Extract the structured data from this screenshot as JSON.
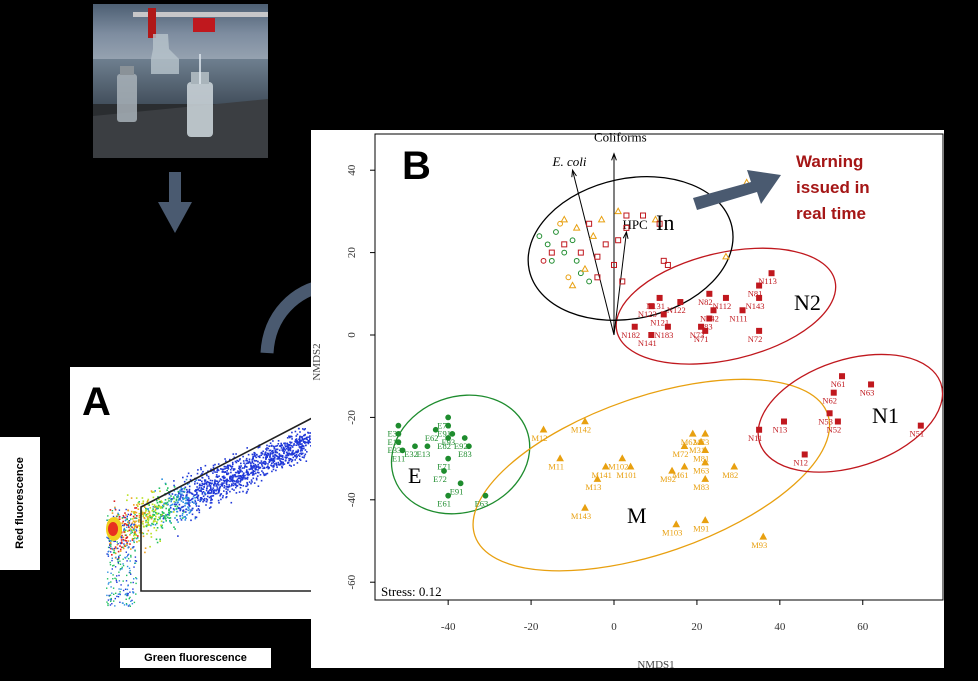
{
  "panels": {
    "a_letter": "A",
    "b_letter": "B"
  },
  "panel_a": {
    "y_label": "Red fluorescence",
    "x_label": "Green fluorescence"
  },
  "panel_b": {
    "y_axis_label": "NMDS2",
    "x_axis_label": "NMDS1",
    "stress": "Stress: 0.12",
    "warning_lines": [
      "Warning",
      "issued in",
      "real time"
    ],
    "vectors": {
      "ecoli": "E. coli",
      "coliforms": "Coliforms",
      "hpc": "HPC"
    },
    "cluster_labels": {
      "in": "In",
      "n2": "N2",
      "n1": "N1",
      "e": "E",
      "m": "M"
    }
  },
  "colors": {
    "E": "#1e8c2e",
    "M": "#e8a010",
    "N": "#c0181e",
    "In": "#000000",
    "warning": "#a51616",
    "arrow": "#4a5a70"
  },
  "chart_data": {
    "type": "scatter",
    "xlabel": "NMDS1",
    "ylabel": "NMDS2",
    "xlim": [
      -57,
      79
    ],
    "ylim": [
      -62,
      44
    ],
    "xticks": [
      -40,
      -20,
      0,
      20,
      40,
      60
    ],
    "yticks": [
      40,
      20,
      0,
      -20,
      -40,
      -60
    ],
    "annotation": "Stress: 0.12",
    "clusters": [
      {
        "label": "E",
        "ellipse": {
          "cx": -37,
          "cy": -29,
          "rx": 17,
          "ry": 14,
          "angle": -20
        }
      },
      {
        "label": "M",
        "ellipse": {
          "cx": 9,
          "cy": -34,
          "rx": 45,
          "ry": 19,
          "angle": -19
        }
      },
      {
        "label": "N1",
        "ellipse": {
          "cx": 57,
          "cy": -19,
          "rx": 23,
          "ry": 13,
          "angle": -18
        }
      },
      {
        "label": "N2",
        "ellipse": {
          "cx": 27,
          "cy": 7,
          "rx": 27,
          "ry": 13,
          "angle": -13
        }
      },
      {
        "label": "In",
        "ellipse": {
          "cx": 4,
          "cy": 21,
          "rx": 25,
          "ry": 17,
          "angle": -12
        }
      }
    ],
    "series": [
      {
        "name": "E",
        "marker": "circle",
        "points": [
          {
            "label": "E31",
            "x": -52,
            "y": -22
          },
          {
            "label": "E12",
            "x": -52,
            "y": -24
          },
          {
            "label": "E33",
            "x": -52,
            "y": -26
          },
          {
            "label": "E32",
            "x": -48,
            "y": -27
          },
          {
            "label": "E11",
            "x": -51,
            "y": -28
          },
          {
            "label": "E13",
            "x": -45,
            "y": -27
          },
          {
            "label": "E73",
            "x": -40,
            "y": -20
          },
          {
            "label": "E62",
            "x": -43,
            "y": -23
          },
          {
            "label": "E91",
            "x": -40,
            "y": -22
          },
          {
            "label": "E93",
            "x": -39,
            "y": -24
          },
          {
            "label": "E82",
            "x": -40,
            "y": -25
          },
          {
            "label": "E92",
            "x": -36,
            "y": -25
          },
          {
            "label": "E83",
            "x": -35,
            "y": -27
          },
          {
            "label": "E71",
            "x": -40,
            "y": -30
          },
          {
            "label": "E72",
            "x": -41,
            "y": -33
          },
          {
            "label": "E91",
            "x": -37,
            "y": -36
          },
          {
            "label": "E61",
            "x": -40,
            "y": -39
          },
          {
            "label": "E63",
            "x": -31,
            "y": -39
          }
        ]
      },
      {
        "name": "M",
        "marker": "triangle",
        "points": [
          {
            "label": "M12",
            "x": -17,
            "y": -23
          },
          {
            "label": "M142",
            "x": -7,
            "y": -21
          },
          {
            "label": "M11",
            "x": -13,
            "y": -30
          },
          {
            "label": "M102",
            "x": 2,
            "y": -30
          },
          {
            "label": "M141",
            "x": -2,
            "y": -32
          },
          {
            "label": "M101",
            "x": 4,
            "y": -32
          },
          {
            "label": "M13",
            "x": -4,
            "y": -35
          },
          {
            "label": "M143",
            "x": -7,
            "y": -42
          },
          {
            "label": "M62",
            "x": 19,
            "y": -24
          },
          {
            "label": "M73",
            "x": 22,
            "y": -24
          },
          {
            "label": "M31",
            "x": 21,
            "y": -26
          },
          {
            "label": "M72",
            "x": 17,
            "y": -27
          },
          {
            "label": "M81",
            "x": 22,
            "y": -28
          },
          {
            "label": "M61",
            "x": 17,
            "y": -32
          },
          {
            "label": "M92",
            "x": 14,
            "y": -33
          },
          {
            "label": "M63",
            "x": 22,
            "y": -31
          },
          {
            "label": "M82",
            "x": 29,
            "y": -32
          },
          {
            "label": "M83",
            "x": 22,
            "y": -35
          },
          {
            "label": "M91",
            "x": 22,
            "y": -45
          },
          {
            "label": "M103",
            "x": 15,
            "y": -46
          },
          {
            "label": "M93",
            "x": 36,
            "y": -49
          }
        ]
      },
      {
        "name": "N1",
        "marker": "square",
        "points": [
          {
            "label": "N61",
            "x": 55,
            "y": -10
          },
          {
            "label": "N63",
            "x": 62,
            "y": -12
          },
          {
            "label": "N62",
            "x": 53,
            "y": -14
          },
          {
            "label": "N53",
            "x": 52,
            "y": -19
          },
          {
            "label": "N52",
            "x": 54,
            "y": -21
          },
          {
            "label": "N11",
            "x": 35,
            "y": -23
          },
          {
            "label": "N13",
            "x": 41,
            "y": -21
          },
          {
            "label": "N12",
            "x": 46,
            "y": -29
          },
          {
            "label": "N51",
            "x": 74,
            "y": -22
          }
        ]
      },
      {
        "name": "N2",
        "marker": "square",
        "points": [
          {
            "label": "N113",
            "x": 38,
            "y": 15
          },
          {
            "label": "N81",
            "x": 35,
            "y": 12
          },
          {
            "label": "N82",
            "x": 23,
            "y": 10
          },
          {
            "label": "N112",
            "x": 27,
            "y": 9
          },
          {
            "label": "N143",
            "x": 35,
            "y": 9
          },
          {
            "label": "N131",
            "x": 11,
            "y": 9
          },
          {
            "label": "N122",
            "x": 16,
            "y": 8
          },
          {
            "label": "N142",
            "x": 24,
            "y": 6
          },
          {
            "label": "N111",
            "x": 31,
            "y": 6
          },
          {
            "label": "N123",
            "x": 9,
            "y": 7
          },
          {
            "label": "N121",
            "x": 12,
            "y": 5
          },
          {
            "label": "N83",
            "x": 23,
            "y": 4
          },
          {
            "label": "N183",
            "x": 13,
            "y": 2
          },
          {
            "label": "N73",
            "x": 21,
            "y": 2
          },
          {
            "label": "N182",
            "x": 5,
            "y": 2
          },
          {
            "label": "N141",
            "x": 9,
            "y": 0
          },
          {
            "label": "N71",
            "x": 22,
            "y": 1
          },
          {
            "label": "N72",
            "x": 35,
            "y": 1
          }
        ]
      },
      {
        "name": "In",
        "marker": "mixed",
        "points": [
          {
            "x": -18,
            "y": 24,
            "m": "o",
            "c": "E"
          },
          {
            "x": -16,
            "y": 22,
            "m": "o",
            "c": "E"
          },
          {
            "x": -14,
            "y": 25,
            "m": "o",
            "c": "E"
          },
          {
            "x": -12,
            "y": 20,
            "m": "o",
            "c": "E"
          },
          {
            "x": -10,
            "y": 23,
            "m": "o",
            "c": "E"
          },
          {
            "x": -9,
            "y": 18,
            "m": "o",
            "c": "E"
          },
          {
            "x": -15,
            "y": 18,
            "m": "o",
            "c": "E"
          },
          {
            "x": -8,
            "y": 15,
            "m": "o",
            "c": "E"
          },
          {
            "x": -11,
            "y": 14,
            "m": "o",
            "c": "M"
          },
          {
            "x": -6,
            "y": 13,
            "m": "o",
            "c": "E"
          },
          {
            "x": -13,
            "y": 27,
            "m": "o",
            "c": "M"
          },
          {
            "x": -17,
            "y": 18,
            "m": "o",
            "c": "N"
          },
          {
            "x": -12,
            "y": 28,
            "m": "t",
            "c": "M"
          },
          {
            "x": -9,
            "y": 26,
            "m": "t",
            "c": "M"
          },
          {
            "x": -5,
            "y": 24,
            "m": "t",
            "c": "M"
          },
          {
            "x": -7,
            "y": 16,
            "m": "t",
            "c": "M"
          },
          {
            "x": -10,
            "y": 12,
            "m": "t",
            "c": "M"
          },
          {
            "x": -3,
            "y": 28,
            "m": "t",
            "c": "M"
          },
          {
            "x": 10,
            "y": 28,
            "m": "t",
            "c": "M"
          },
          {
            "x": 32,
            "y": 37,
            "m": "t",
            "c": "M"
          },
          {
            "x": 27,
            "y": 19,
            "m": "t",
            "c": "M"
          },
          {
            "x": 1,
            "y": 30,
            "m": "t",
            "c": "M"
          },
          {
            "x": -15,
            "y": 20,
            "m": "s",
            "c": "N"
          },
          {
            "x": -12,
            "y": 22,
            "m": "s",
            "c": "N"
          },
          {
            "x": -8,
            "y": 20,
            "m": "s",
            "c": "N"
          },
          {
            "x": -4,
            "y": 19,
            "m": "s",
            "c": "N"
          },
          {
            "x": -6,
            "y": 27,
            "m": "s",
            "c": "N"
          },
          {
            "x": 1,
            "y": 23,
            "m": "s",
            "c": "N"
          },
          {
            "x": 3,
            "y": 29,
            "m": "s",
            "c": "N"
          },
          {
            "x": 3,
            "y": 26,
            "m": "s",
            "c": "N"
          },
          {
            "x": 7,
            "y": 29,
            "m": "s",
            "c": "N"
          },
          {
            "x": 0,
            "y": 17,
            "m": "s",
            "c": "N"
          },
          {
            "x": -4,
            "y": 14,
            "m": "s",
            "c": "N"
          },
          {
            "x": 2,
            "y": 13,
            "m": "s",
            "c": "N"
          },
          {
            "x": 12,
            "y": 18,
            "m": "s",
            "c": "N"
          },
          {
            "x": 13,
            "y": 17,
            "m": "s",
            "c": "N"
          },
          {
            "x": 11,
            "y": 27,
            "m": "s",
            "c": "N"
          },
          {
            "x": -2,
            "y": 22,
            "m": "s",
            "c": "N"
          }
        ]
      }
    ],
    "vectors": [
      {
        "label": "E. coli",
        "x": -10,
        "y": 40
      },
      {
        "label": "Coliforms",
        "x": 0,
        "y": 44
      },
      {
        "label": "HPC",
        "x": 3,
        "y": 25
      }
    ]
  }
}
